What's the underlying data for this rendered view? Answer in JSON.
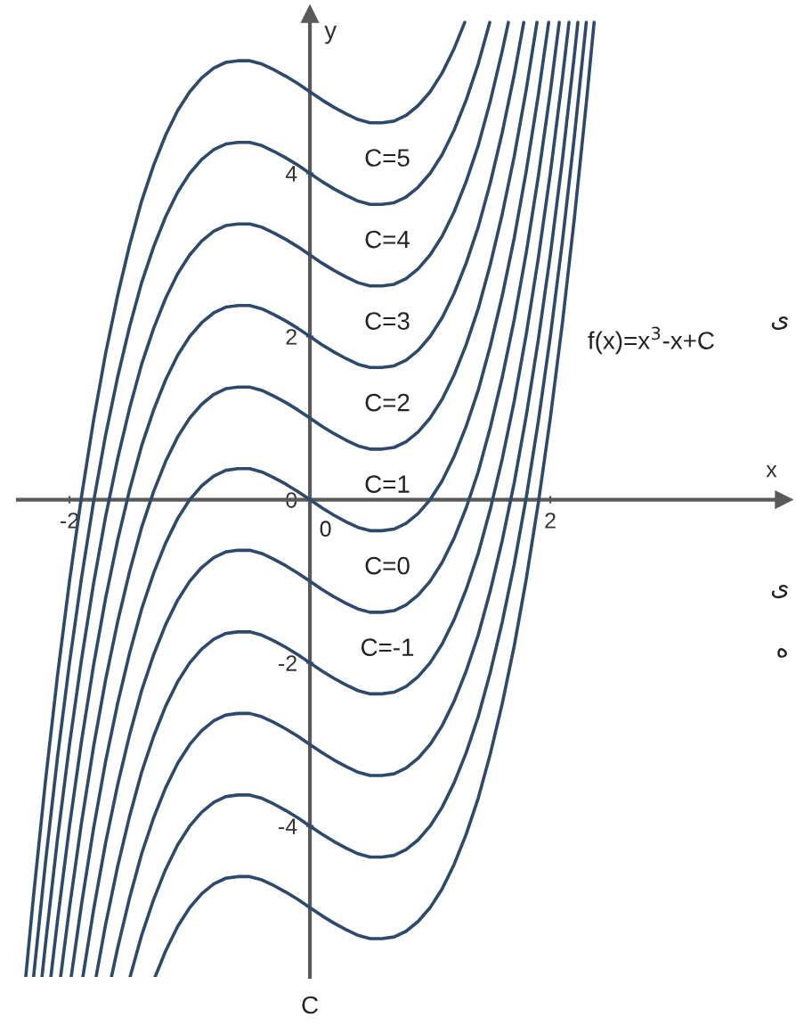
{
  "chart_data": {
    "type": "line",
    "xlabel": "x",
    "ylabel": "y",
    "annotations": [
      "f(x)=x$^{3}$-x+C",
      "C",
      "ی",
      "ی",
      "ه",
      "0"
    ],
    "xlim": [
      -2.43,
      3.94
    ],
    "ylim": [
      -5.85,
      5.95
    ],
    "xticks": [
      -2,
      2
    ],
    "yticks": [
      -4,
      -2,
      0,
      2,
      4
    ],
    "series": [
      {
        "name": "C=5",
        "color": "#2e4a6b",
        "x": [
          -2.364,
          -2.3,
          -2.2,
          -2.1,
          -2,
          -1.9,
          -1.8,
          -1.7,
          -1.6,
          -1.5,
          -1.4,
          -1.3,
          -1.2,
          -1.1,
          -1,
          -0.9,
          -0.8,
          -0.7,
          -0.6,
          -0.5,
          -0.4,
          -0.3,
          -0.2,
          -0.1,
          0,
          0.1,
          0.2,
          0.3,
          0.4,
          0.5,
          0.6,
          0.7,
          0.8,
          0.9,
          1,
          1.1,
          1.2,
          1.288
        ],
        "values": [
          -5.85,
          -4.87,
          -3.45,
          -2.16,
          -1,
          0.04,
          0.97,
          1.79,
          2.5,
          3.12,
          3.66,
          4.1,
          4.47,
          4.77,
          5,
          5.17,
          5.29,
          5.36,
          5.38,
          5.38,
          5.34,
          5.27,
          5.19,
          5.1,
          5,
          4.9,
          4.81,
          4.73,
          4.66,
          4.62,
          4.62,
          4.64,
          4.71,
          4.83,
          5,
          5.23,
          5.53,
          5.85
        ]
      },
      {
        "name": "C=4",
        "color": "#2e4a6b",
        "x": [
          -2.299,
          -2.2,
          -2.1,
          -2,
          -1.9,
          -1.8,
          -1.7,
          -1.6,
          -1.5,
          -1.4,
          -1.3,
          -1.2,
          -1.1,
          -1,
          -0.9,
          -0.8,
          -0.7,
          -0.6,
          -0.5,
          -0.4,
          -0.3,
          -0.2,
          -0.1,
          0,
          0.1,
          0.2,
          0.3,
          0.4,
          0.5,
          0.6,
          0.7,
          0.8,
          0.9,
          1,
          1.1,
          1.2,
          1.3,
          1.4,
          1.496
        ],
        "values": [
          -5.85,
          -4.45,
          -3.16,
          -2,
          -0.96,
          -0.03,
          0.79,
          1.5,
          2.12,
          2.66,
          3.1,
          3.47,
          3.77,
          4,
          4.17,
          4.29,
          4.36,
          4.38,
          4.38,
          4.34,
          4.27,
          4.19,
          4.1,
          4,
          3.9,
          3.81,
          3.73,
          3.66,
          3.62,
          3.62,
          3.64,
          3.71,
          3.83,
          4,
          4.23,
          4.53,
          4.9,
          5.34,
          5.85
        ]
      },
      {
        "name": "C=3",
        "color": "#2e4a6b",
        "x": [
          -2.229,
          -2.2,
          -2.1,
          -2,
          -1.9,
          -1.8,
          -1.7,
          -1.6,
          -1.5,
          -1.4,
          -1.3,
          -1.2,
          -1.1,
          -1,
          -0.9,
          -0.8,
          -0.7,
          -0.6,
          -0.5,
          -0.4,
          -0.3,
          -0.2,
          -0.1,
          0,
          0.1,
          0.2,
          0.3,
          0.4,
          0.5,
          0.6,
          0.7,
          0.8,
          0.9,
          1,
          1.1,
          1.2,
          1.3,
          1.4,
          1.5,
          1.6,
          1.651
        ],
        "values": [
          -5.85,
          -5.45,
          -4.16,
          -3,
          -1.96,
          -1.03,
          -0.21,
          0.5,
          1.12,
          1.66,
          2.1,
          2.47,
          2.77,
          3,
          3.17,
          3.29,
          3.36,
          3.38,
          3.38,
          3.34,
          3.27,
          3.19,
          3.1,
          3,
          2.9,
          2.81,
          2.73,
          2.66,
          2.62,
          2.62,
          2.64,
          2.71,
          2.83,
          3,
          3.23,
          3.53,
          3.9,
          4.34,
          4.88,
          5.5,
          5.85
        ]
      },
      {
        "name": "C=2",
        "color": "#2e4a6b",
        "x": [
          -2.155,
          -2.1,
          -2,
          -1.9,
          -1.8,
          -1.7,
          -1.6,
          -1.5,
          -1.4,
          -1.3,
          -1.2,
          -1.1,
          -1,
          -0.9,
          -0.8,
          -0.7,
          -0.6,
          -0.5,
          -0.4,
          -0.3,
          -0.2,
          -0.1,
          0,
          0.1,
          0.2,
          0.3,
          0.4,
          0.5,
          0.6,
          0.7,
          0.8,
          0.9,
          1,
          1.1,
          1.2,
          1.3,
          1.4,
          1.5,
          1.6,
          1.7,
          1.779
        ],
        "values": [
          -5.85,
          -5.16,
          -4,
          -2.96,
          -2.03,
          -1.21,
          -0.5,
          0.12,
          0.66,
          1.1,
          1.47,
          1.77,
          2,
          2.17,
          2.29,
          2.36,
          2.38,
          2.38,
          2.34,
          2.27,
          2.19,
          2.1,
          2,
          1.9,
          1.81,
          1.73,
          1.66,
          1.62,
          1.62,
          1.64,
          1.71,
          1.83,
          2,
          2.23,
          2.53,
          2.9,
          3.34,
          3.88,
          4.5,
          5.21,
          5.85
        ]
      },
      {
        "name": "C=1",
        "color": "#2e4a6b",
        "x": [
          -2.074,
          -2,
          -1.9,
          -1.8,
          -1.7,
          -1.6,
          -1.5,
          -1.4,
          -1.3,
          -1.2,
          -1.1,
          -1,
          -0.9,
          -0.8,
          -0.7,
          -0.6,
          -0.5,
          -0.4,
          -0.3,
          -0.2,
          -0.1,
          0,
          0.1,
          0.2,
          0.3,
          0.4,
          0.5,
          0.6,
          0.7,
          0.8,
          0.9,
          1,
          1.1,
          1.2,
          1.3,
          1.4,
          1.5,
          1.6,
          1.7,
          1.8,
          1.889
        ],
        "values": [
          -5.85,
          -5,
          -3.96,
          -3.03,
          -2.21,
          -1.5,
          -0.88,
          -0.34,
          0.1,
          0.47,
          0.77,
          1,
          1.17,
          1.29,
          1.36,
          1.38,
          1.38,
          1.34,
          1.27,
          1.19,
          1.1,
          1,
          0.9,
          0.81,
          0.73,
          0.66,
          0.62,
          0.62,
          0.64,
          0.71,
          0.83,
          1,
          1.23,
          1.53,
          1.9,
          2.34,
          2.88,
          3.5,
          4.21,
          5.03,
          5.85
        ]
      },
      {
        "name": "C=0",
        "color": "#2e4a6b",
        "x": [
          -1.986,
          -1.9,
          -1.8,
          -1.7,
          -1.6,
          -1.5,
          -1.4,
          -1.3,
          -1.2,
          -1.1,
          -1,
          -0.9,
          -0.8,
          -0.7,
          -0.6,
          -0.5,
          -0.4,
          -0.3,
          -0.2,
          -0.1,
          0,
          0.1,
          0.2,
          0.3,
          0.4,
          0.5,
          0.6,
          0.7,
          0.8,
          0.9,
          1,
          1.1,
          1.2,
          1.3,
          1.4,
          1.5,
          1.6,
          1.7,
          1.8,
          1.9,
          1.986
        ],
        "values": [
          -5.85,
          -4.96,
          -4.03,
          -3.21,
          -2.5,
          -1.88,
          -1.34,
          -0.9,
          -0.53,
          -0.23,
          0,
          0.17,
          0.29,
          0.36,
          0.38,
          0.38,
          0.34,
          0.27,
          0.19,
          0.1,
          0,
          -0.1,
          -0.19,
          -0.27,
          -0.34,
          -0.38,
          -0.38,
          -0.36,
          -0.29,
          -0.17,
          0,
          0.23,
          0.53,
          0.9,
          1.34,
          1.88,
          2.5,
          3.21,
          4.03,
          4.96,
          5.85
        ]
      },
      {
        "name": "C=-1",
        "color": "#2e4a6b",
        "x": [
          -1.889,
          -1.8,
          -1.7,
          -1.6,
          -1.5,
          -1.4,
          -1.3,
          -1.2,
          -1.1,
          -1,
          -0.9,
          -0.8,
          -0.7,
          -0.6,
          -0.5,
          -0.4,
          -0.3,
          -0.2,
          -0.1,
          0,
          0.1,
          0.2,
          0.3,
          0.4,
          0.5,
          0.6,
          0.7,
          0.8,
          0.9,
          1,
          1.1,
          1.2,
          1.3,
          1.4,
          1.5,
          1.6,
          1.7,
          1.8,
          1.9,
          2,
          2.074
        ],
        "values": [
          -5.85,
          -5.03,
          -4.21,
          -3.5,
          -2.88,
          -2.34,
          -1.9,
          -1.53,
          -1.23,
          -1,
          -0.83,
          -0.71,
          -0.64,
          -0.62,
          -0.62,
          -0.66,
          -0.73,
          -0.81,
          -0.9,
          -1,
          -1.1,
          -1.19,
          -1.27,
          -1.34,
          -1.38,
          -1.38,
          -1.36,
          -1.29,
          -1.17,
          -1,
          -0.77,
          -0.47,
          -0.1,
          0.34,
          0.88,
          1.5,
          2.21,
          3.03,
          3.96,
          5,
          5.85
        ]
      },
      {
        "color": "#2e4a6b",
        "x": [
          -1.779,
          -1.7,
          -1.6,
          -1.5,
          -1.4,
          -1.3,
          -1.2,
          -1.1,
          -1,
          -0.9,
          -0.8,
          -0.7,
          -0.6,
          -0.5,
          -0.4,
          -0.3,
          -0.2,
          -0.1,
          0,
          0.1,
          0.2,
          0.3,
          0.4,
          0.5,
          0.6,
          0.7,
          0.8,
          0.9,
          1,
          1.1,
          1.2,
          1.3,
          1.4,
          1.5,
          1.6,
          1.7,
          1.8,
          1.9,
          2,
          2.1,
          2.155
        ],
        "values": [
          -5.85,
          -5.21,
          -4.5,
          -3.88,
          -3.34,
          -2.9,
          -2.53,
          -2.23,
          -2,
          -1.83,
          -1.71,
          -1.64,
          -1.62,
          -1.62,
          -1.66,
          -1.73,
          -1.81,
          -1.9,
          -2,
          -2.1,
          -2.19,
          -2.27,
          -2.34,
          -2.38,
          -2.38,
          -2.36,
          -2.29,
          -2.17,
          -2,
          -1.77,
          -1.47,
          -1.1,
          -0.66,
          -0.12,
          0.5,
          1.21,
          2.03,
          2.96,
          4,
          5.16,
          5.85
        ]
      },
      {
        "color": "#2e4a6b",
        "x": [
          -1.651,
          -1.6,
          -1.5,
          -1.4,
          -1.3,
          -1.2,
          -1.1,
          -1,
          -0.9,
          -0.8,
          -0.7,
          -0.6,
          -0.5,
          -0.4,
          -0.3,
          -0.2,
          -0.1,
          0,
          0.1,
          0.2,
          0.3,
          0.4,
          0.5,
          0.6,
          0.7,
          0.8,
          0.9,
          1,
          1.1,
          1.2,
          1.3,
          1.4,
          1.5,
          1.6,
          1.7,
          1.8,
          1.9,
          2,
          2.1,
          2.2,
          2.229
        ],
        "values": [
          -5.85,
          -5.5,
          -4.88,
          -4.34,
          -3.9,
          -3.53,
          -3.23,
          -3,
          -2.83,
          -2.71,
          -2.64,
          -2.62,
          -2.62,
          -2.66,
          -2.73,
          -2.81,
          -2.9,
          -3,
          -3.1,
          -3.19,
          -3.27,
          -3.34,
          -3.38,
          -3.38,
          -3.36,
          -3.29,
          -3.17,
          -3,
          -2.77,
          -2.47,
          -2.1,
          -1.66,
          -1.12,
          -0.5,
          0.21,
          1.03,
          1.96,
          3,
          4.16,
          5.45,
          5.85
        ]
      },
      {
        "color": "#2e4a6b",
        "x": [
          -1.496,
          -1.4,
          -1.3,
          -1.2,
          -1.1,
          -1,
          -0.9,
          -0.8,
          -0.7,
          -0.6,
          -0.5,
          -0.4,
          -0.3,
          -0.2,
          -0.1,
          0,
          0.1,
          0.2,
          0.3,
          0.4,
          0.5,
          0.6,
          0.7,
          0.8,
          0.9,
          1,
          1.1,
          1.2,
          1.3,
          1.4,
          1.5,
          1.6,
          1.7,
          1.8,
          1.9,
          2,
          2.1,
          2.2,
          2.299
        ],
        "values": [
          -5.85,
          -5.34,
          -4.9,
          -4.53,
          -4.23,
          -4,
          -3.83,
          -3.71,
          -3.64,
          -3.62,
          -3.62,
          -3.66,
          -3.73,
          -3.81,
          -3.9,
          -4,
          -4.1,
          -4.19,
          -4.27,
          -4.34,
          -4.38,
          -4.38,
          -4.36,
          -4.29,
          -4.17,
          -4,
          -3.77,
          -3.47,
          -3.1,
          -2.66,
          -2.12,
          -1.5,
          -0.79,
          0.03,
          0.96,
          2,
          3.16,
          4.45,
          5.85
        ]
      },
      {
        "color": "#2e4a6b",
        "x": [
          -1.288,
          -1.2,
          -1.1,
          -1,
          -0.9,
          -0.8,
          -0.7,
          -0.6,
          -0.5,
          -0.4,
          -0.3,
          -0.2,
          -0.1,
          0,
          0.1,
          0.2,
          0.3,
          0.4,
          0.5,
          0.6,
          0.7,
          0.8,
          0.9,
          1,
          1.1,
          1.2,
          1.3,
          1.4,
          1.5,
          1.6,
          1.7,
          1.8,
          1.9,
          2,
          2.1,
          2.2,
          2.3,
          2.364
        ],
        "values": [
          -5.85,
          -5.53,
          -5.23,
          -5,
          -4.83,
          -4.71,
          -4.64,
          -4.62,
          -4.62,
          -4.66,
          -4.73,
          -4.81,
          -4.9,
          -5,
          -5.1,
          -5.19,
          -5.27,
          -5.34,
          -5.38,
          -5.38,
          -5.36,
          -5.29,
          -5.17,
          -5,
          -4.77,
          -4.47,
          -4.1,
          -3.66,
          -3.12,
          -2.5,
          -1.79,
          -0.97,
          -0.04,
          1,
          2.16,
          3.45,
          4.87,
          5.85
        ]
      }
    ]
  }
}
